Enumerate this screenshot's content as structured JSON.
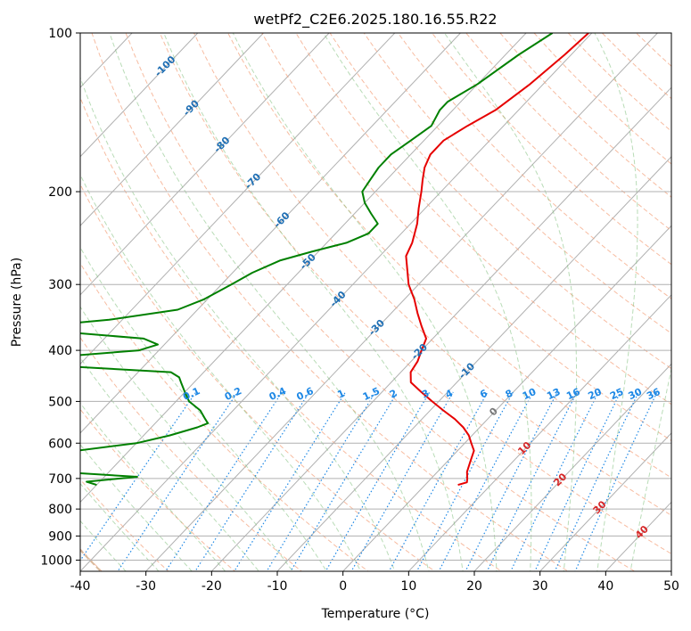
{
  "chart_data": {
    "type": "line",
    "title": "wetPf2_C2E6.2025.180.16.55.R22",
    "xlabel": "Temperature (°C)",
    "ylabel": "Pressure (hPa)",
    "xlim": [
      -40,
      50
    ],
    "ylim": [
      1050,
      100
    ],
    "y_scale": "log",
    "grid": true,
    "x_ticks": [
      "-40",
      "-30",
      "-20",
      "-10",
      "0",
      "10",
      "20",
      "30",
      "40",
      "50"
    ],
    "y_ticks": [
      "100",
      "200",
      "300",
      "400",
      "500",
      "600",
      "700",
      "800",
      "900",
      "1000"
    ],
    "mixing_ratio_labels": [
      "0.1",
      "0.2",
      "0.4",
      "0.6",
      "1",
      "1.5",
      "2",
      "3",
      "4",
      "6",
      "8",
      "10",
      "13",
      "16",
      "20",
      "25",
      "30",
      "36"
    ],
    "isotherm_labels_blue": [
      "-100",
      "-90",
      "-80",
      "-70",
      "-60",
      "-50",
      "-40",
      "-30",
      "-20",
      "-10"
    ],
    "isotherm_label_zero": "0",
    "isotherm_labels_red": [
      "10",
      "20",
      "30",
      "40"
    ],
    "series": [
      {
        "color": "#e60000",
        "points": [
          [
            -40.5,
            100
          ],
          [
            -41,
            110
          ],
          [
            -42,
            125
          ],
          [
            -43.5,
            140
          ],
          [
            -45.5,
            150
          ],
          [
            -47,
            160
          ],
          [
            -47,
            170
          ],
          [
            -46,
            180
          ],
          [
            -44.5,
            190
          ],
          [
            -43,
            200
          ],
          [
            -41,
            215
          ],
          [
            -39,
            230
          ],
          [
            -37,
            250
          ],
          [
            -36,
            265
          ],
          [
            -34,
            280
          ],
          [
            -31.5,
            300
          ],
          [
            -28.5,
            320
          ],
          [
            -26,
            340
          ],
          [
            -23.5,
            360
          ],
          [
            -21,
            380
          ],
          [
            -20,
            400
          ],
          [
            -19,
            420
          ],
          [
            -18.5,
            440
          ],
          [
            -17,
            460
          ],
          [
            -14,
            480
          ],
          [
            -11,
            500
          ],
          [
            -8,
            520
          ],
          [
            -5,
            540
          ],
          [
            -2.5,
            560
          ],
          [
            -0.5,
            580
          ],
          [
            1,
            600
          ],
          [
            2.5,
            620
          ],
          [
            3.5,
            650
          ],
          [
            4.5,
            680
          ],
          [
            5.5,
            700
          ],
          [
            6,
            712
          ],
          [
            5,
            720
          ]
        ]
      },
      {
        "color": "#008000",
        "points": [
          [
            -46,
            100
          ],
          [
            -48,
            110
          ],
          [
            -50,
            125
          ],
          [
            -52,
            135
          ],
          [
            -52,
            140
          ],
          [
            -51,
            150
          ],
          [
            -52,
            160
          ],
          [
            -53,
            170
          ],
          [
            -53,
            180
          ],
          [
            -52.5,
            190
          ],
          [
            -52,
            200
          ],
          [
            -50,
            210
          ],
          [
            -47.5,
            220
          ],
          [
            -45,
            230
          ],
          [
            -45,
            240
          ],
          [
            -47,
            250
          ],
          [
            -51,
            260
          ],
          [
            -54.5,
            270
          ],
          [
            -57,
            285
          ],
          [
            -58.5,
            300
          ],
          [
            -60.5,
            320
          ],
          [
            -63,
            335
          ],
          [
            -72,
            350
          ],
          [
            -82,
            360
          ],
          [
            -76,
            370
          ],
          [
            -64,
            380
          ],
          [
            -61,
            390
          ],
          [
            -63,
            400
          ],
          [
            -73,
            410
          ],
          [
            -78,
            420
          ],
          [
            -70,
            430
          ],
          [
            -55,
            440
          ],
          [
            -53,
            450
          ],
          [
            -52,
            460
          ],
          [
            -50,
            480
          ],
          [
            -48,
            500
          ],
          [
            -45,
            520
          ],
          [
            -43,
            540
          ],
          [
            -42,
            550
          ],
          [
            -43,
            560
          ],
          [
            -46,
            580
          ],
          [
            -50,
            600
          ],
          [
            -58,
            620
          ],
          [
            -62,
            640
          ],
          [
            -60,
            660
          ],
          [
            -58,
            680
          ],
          [
            -45,
            695
          ],
          [
            -52,
            710
          ],
          [
            -50,
            720
          ]
        ]
      }
    ]
  }
}
